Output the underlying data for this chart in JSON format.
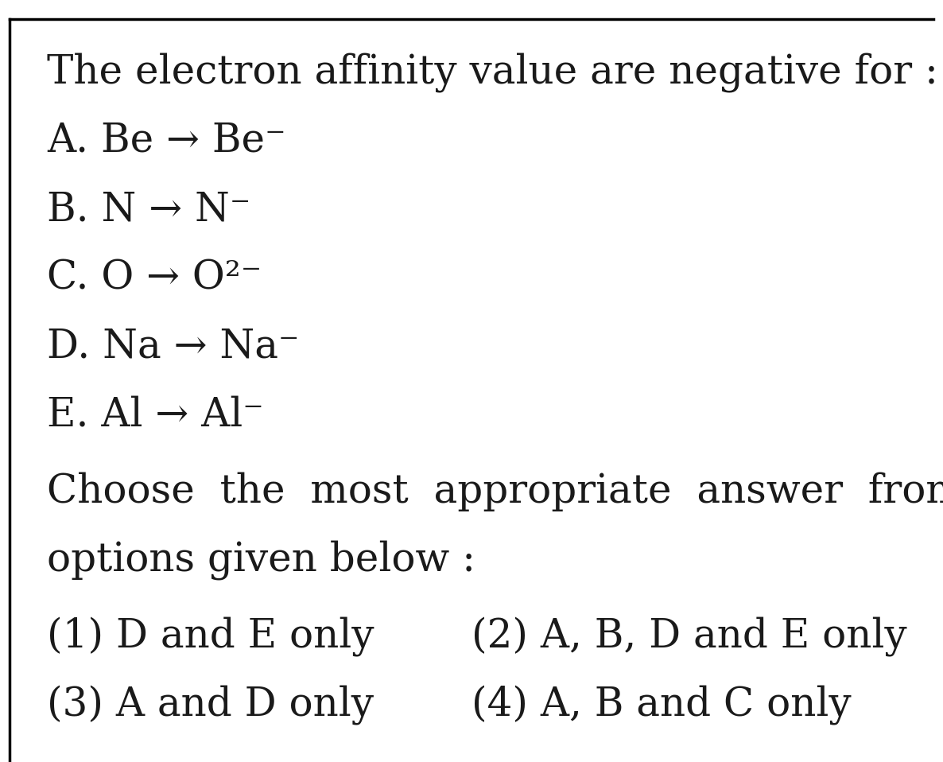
{
  "bg_color": "#ffffff",
  "border_color": "#000000",
  "text_color": "#1a1a1a",
  "title": "The electron affinity value are negative for :",
  "option_A": "A. Be → Be⁻",
  "option_B": "B. N → N⁻",
  "option_C": "C. O → O²⁻",
  "option_D": "D. Na → Na⁻",
  "option_E": "E. Al → Al⁻",
  "choose_line1": "Choose  the  most  appropriate  answer  from",
  "choose_line2": "options given below :",
  "ans1": "(1) D and E only",
  "ans2": "(2) A, B, D and E only",
  "ans3": "(3) A and D only",
  "ans4": "(4) A, B and C only",
  "font_size": 36,
  "figwidth": 11.86,
  "figheight": 9.58,
  "dpi": 100
}
